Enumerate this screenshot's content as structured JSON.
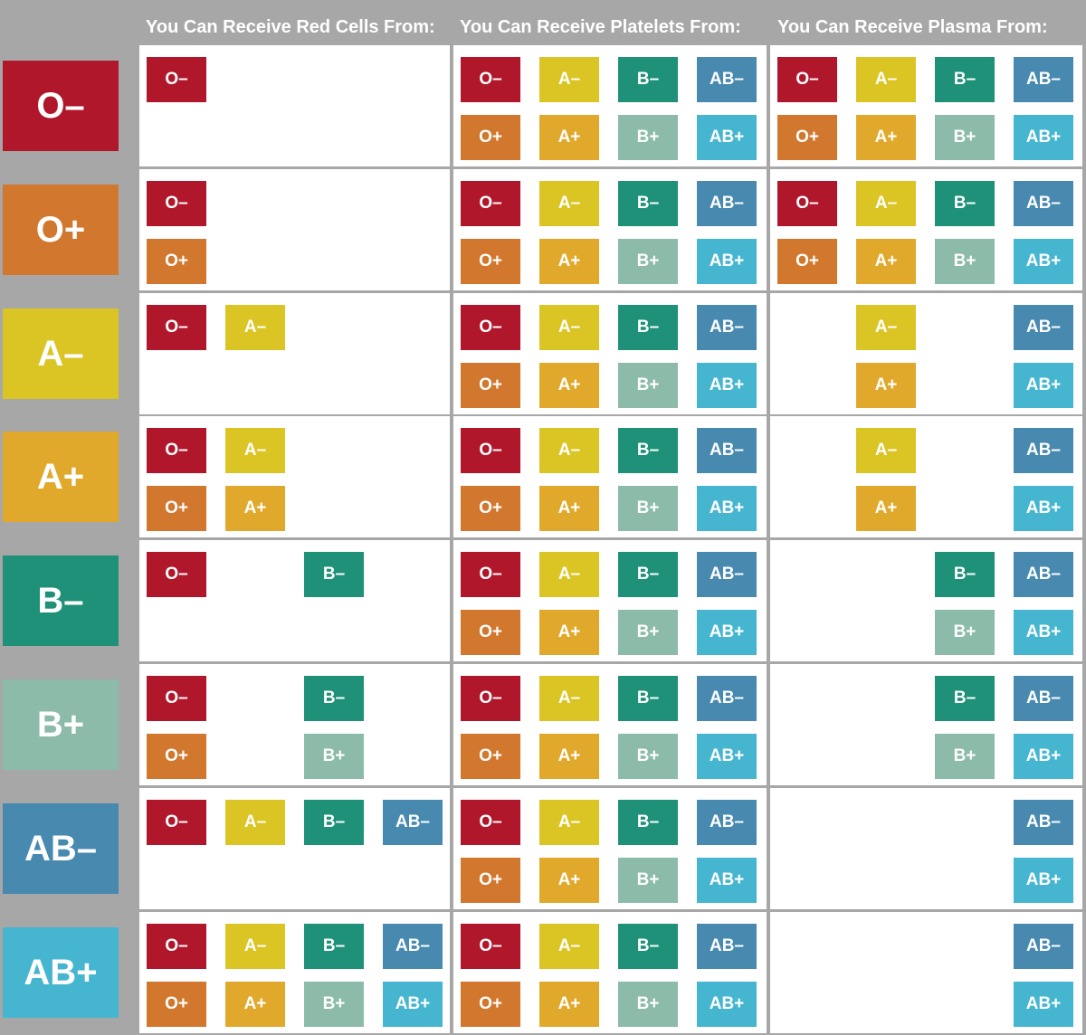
{
  "chart_data": {
    "type": "table",
    "columns": [
      "You Can Receive Red Cells From:",
      "You Can Receive Platelets From:",
      "You Can Receive Plasma From:"
    ],
    "blood_types": [
      "O–",
      "O+",
      "A–",
      "A+",
      "B–",
      "B+",
      "AB–",
      "AB+"
    ],
    "colors": {
      "O–": "#b0172b",
      "O+": "#d2772e",
      "A–": "#dbc525",
      "A+": "#e1a92b",
      "B–": "#1e9178",
      "B+": "#8cbba9",
      "AB–": "#4789af",
      "AB+": "#46b6d0"
    },
    "compatibility": [
      {
        "recipient": "O–",
        "red_cells": [
          "O–"
        ],
        "platelets": [
          "O–",
          "A–",
          "B–",
          "AB–",
          "O+",
          "A+",
          "B+",
          "AB+"
        ],
        "plasma": [
          "O–",
          "A–",
          "B–",
          "AB–",
          "O+",
          "A+",
          "B+",
          "AB+"
        ]
      },
      {
        "recipient": "O+",
        "red_cells": [
          "O–",
          "O+"
        ],
        "platelets": [
          "O–",
          "A–",
          "B–",
          "AB–",
          "O+",
          "A+",
          "B+",
          "AB+"
        ],
        "plasma": [
          "O–",
          "A–",
          "B–",
          "AB–",
          "O+",
          "A+",
          "B+",
          "AB+"
        ]
      },
      {
        "recipient": "A–",
        "red_cells": [
          "O–",
          "A–"
        ],
        "platelets": [
          "O–",
          "A–",
          "B–",
          "AB–",
          "O+",
          "A+",
          "B+",
          "AB+"
        ],
        "plasma": [
          "A–",
          "AB–",
          "A+",
          "AB+"
        ]
      },
      {
        "recipient": "A+",
        "red_cells": [
          "O–",
          "A–",
          "O+",
          "A+"
        ],
        "platelets": [
          "O–",
          "A–",
          "B–",
          "AB–",
          "O+",
          "A+",
          "B+",
          "AB+"
        ],
        "plasma": [
          "A–",
          "AB–",
          "A+",
          "AB+"
        ]
      },
      {
        "recipient": "B–",
        "red_cells": [
          "O–",
          "B–"
        ],
        "platelets": [
          "O–",
          "A–",
          "B–",
          "AB–",
          "O+",
          "A+",
          "B+",
          "AB+"
        ],
        "plasma": [
          "B–",
          "AB–",
          "B+",
          "AB+"
        ]
      },
      {
        "recipient": "B+",
        "red_cells": [
          "O–",
          "B–",
          "O+",
          "B+"
        ],
        "platelets": [
          "O–",
          "A–",
          "B–",
          "AB–",
          "O+",
          "A+",
          "B+",
          "AB+"
        ],
        "plasma": [
          "B–",
          "AB–",
          "B+",
          "AB+"
        ]
      },
      {
        "recipient": "AB–",
        "red_cells": [
          "O–",
          "A–",
          "B–",
          "AB–"
        ],
        "platelets": [
          "O–",
          "A–",
          "B–",
          "AB–",
          "O+",
          "A+",
          "B+",
          "AB+"
        ],
        "plasma": [
          "AB–",
          "AB+"
        ]
      },
      {
        "recipient": "AB+",
        "red_cells": [
          "O–",
          "A–",
          "B–",
          "AB–",
          "O+",
          "A+",
          "B+",
          "AB+"
        ],
        "plasma": [
          "AB–",
          "AB+"
        ],
        "platelets": [
          "O–",
          "A–",
          "B–",
          "AB–",
          "O+",
          "A+",
          "B+",
          "AB+"
        ]
      }
    ]
  }
}
